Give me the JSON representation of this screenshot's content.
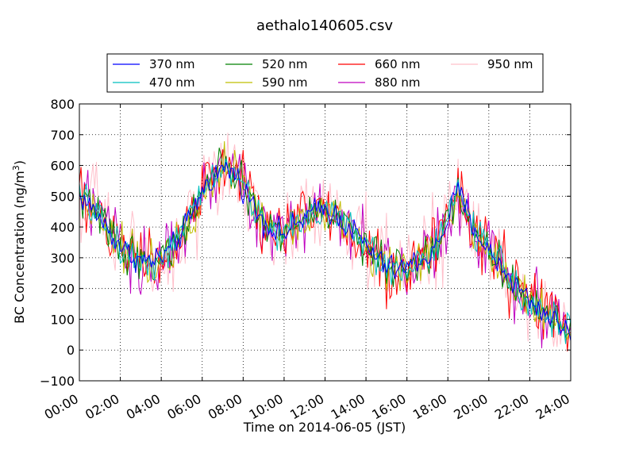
{
  "chart_data": {
    "type": "line",
    "title": "aethalo140605.csv",
    "xlabel": "Time on 2014-06-05 (JST)",
    "ylabel": "BC Concentration (ng/m",
    "ylabel_sup": "3",
    "ylabel_tail": ")",
    "xlim": [
      0,
      24
    ],
    "ylim": [
      -100,
      800
    ],
    "grid": true,
    "grid_style": "dotted",
    "legend_location": "upper center",
    "x_ticks": [
      0,
      2,
      4,
      6,
      8,
      10,
      12,
      14,
      16,
      18,
      20,
      22,
      24
    ],
    "x_tick_labels": [
      "00:00",
      "02:00",
      "04:00",
      "06:00",
      "08:00",
      "10:00",
      "12:00",
      "14:00",
      "16:00",
      "18:00",
      "20:00",
      "22:00",
      "24:00"
    ],
    "y_ticks": [
      -100,
      0,
      100,
      200,
      300,
      400,
      500,
      600,
      700,
      800
    ],
    "y_tick_labels": [
      "−100",
      "0",
      "100",
      "200",
      "300",
      "400",
      "500",
      "600",
      "700",
      "800"
    ],
    "trend": {
      "x": [
        0,
        0.5,
        1,
        1.5,
        2,
        2.5,
        3,
        3.5,
        4,
        4.5,
        5,
        5.5,
        6,
        6.5,
        7,
        7.5,
        8,
        8.5,
        9,
        9.5,
        10,
        10.5,
        11,
        11.5,
        12,
        12.5,
        13,
        13.5,
        14,
        14.5,
        15,
        15.5,
        16,
        16.5,
        17,
        17.5,
        18,
        18.5,
        19,
        19.5,
        20,
        20.5,
        21,
        21.5,
        22,
        22.5,
        23,
        23.5,
        24
      ],
      "y": [
        500,
        470,
        430,
        380,
        340,
        310,
        290,
        290,
        300,
        330,
        380,
        440,
        520,
        560,
        590,
        580,
        530,
        470,
        420,
        390,
        380,
        400,
        430,
        450,
        460,
        440,
        410,
        380,
        340,
        300,
        270,
        260,
        270,
        290,
        300,
        340,
        430,
        520,
        440,
        370,
        320,
        280,
        240,
        200,
        160,
        130,
        110,
        80,
        60
      ]
    },
    "series": [
      {
        "name": "370 nm",
        "color": "#0000ff",
        "noise": 30
      },
      {
        "name": "470 nm",
        "color": "#00bfbf",
        "noise": 40
      },
      {
        "name": "520 nm",
        "color": "#008000",
        "noise": 45
      },
      {
        "name": "590 nm",
        "color": "#bfbf00",
        "noise": 50
      },
      {
        "name": "660 nm",
        "color": "#ff0000",
        "noise": 75
      },
      {
        "name": "880 nm",
        "color": "#bf00bf",
        "noise": 80
      },
      {
        "name": "950 nm",
        "color": "#ffc0cb",
        "noise": 100
      }
    ]
  }
}
